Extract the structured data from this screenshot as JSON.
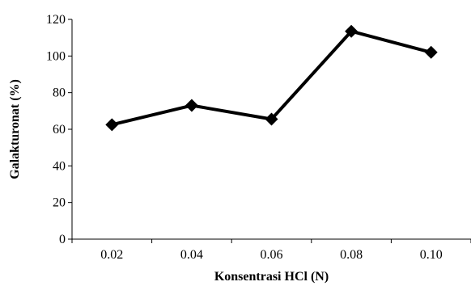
{
  "chart_data": {
    "type": "line",
    "xlabel": "Konsentrasi HCl (N)",
    "ylabel": "Galakturonat (%)",
    "categories": [
      "0.02",
      "0.04",
      "0.06",
      "0.08",
      "0.10"
    ],
    "series": [
      {
        "values": [
          62.5,
          73,
          65.5,
          113.5,
          102
        ]
      }
    ],
    "ylim": [
      0,
      120
    ],
    "yticks": [
      "0",
      "20",
      "40",
      "60",
      "80",
      "100",
      "120"
    ],
    "grid": false,
    "legend": "none",
    "line_color": "#000000",
    "marker": "diamond"
  }
}
